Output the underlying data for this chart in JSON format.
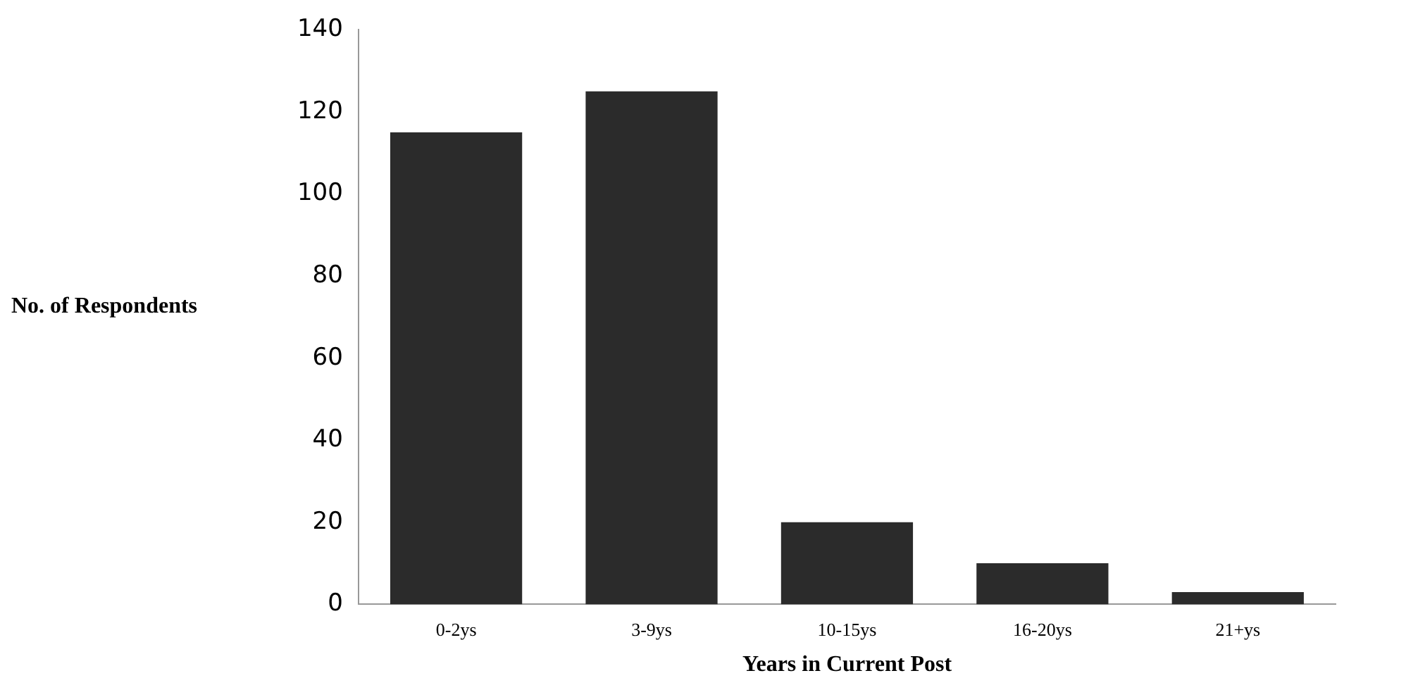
{
  "chart_data": {
    "type": "bar",
    "xlabel": "Years in Current Post",
    "ylabel": "No. of Respondents",
    "categories": [
      "0-2ys",
      "3-9ys",
      "10-15ys",
      "16-20ys",
      "21+ys"
    ],
    "values": [
      115,
      125,
      20,
      10,
      3
    ],
    "color": "#2b2b2b",
    "ylim": [
      0,
      140
    ],
    "yticks": [
      0,
      20,
      40,
      60,
      80,
      100,
      120,
      140
    ],
    "grid": false,
    "legend": false
  }
}
